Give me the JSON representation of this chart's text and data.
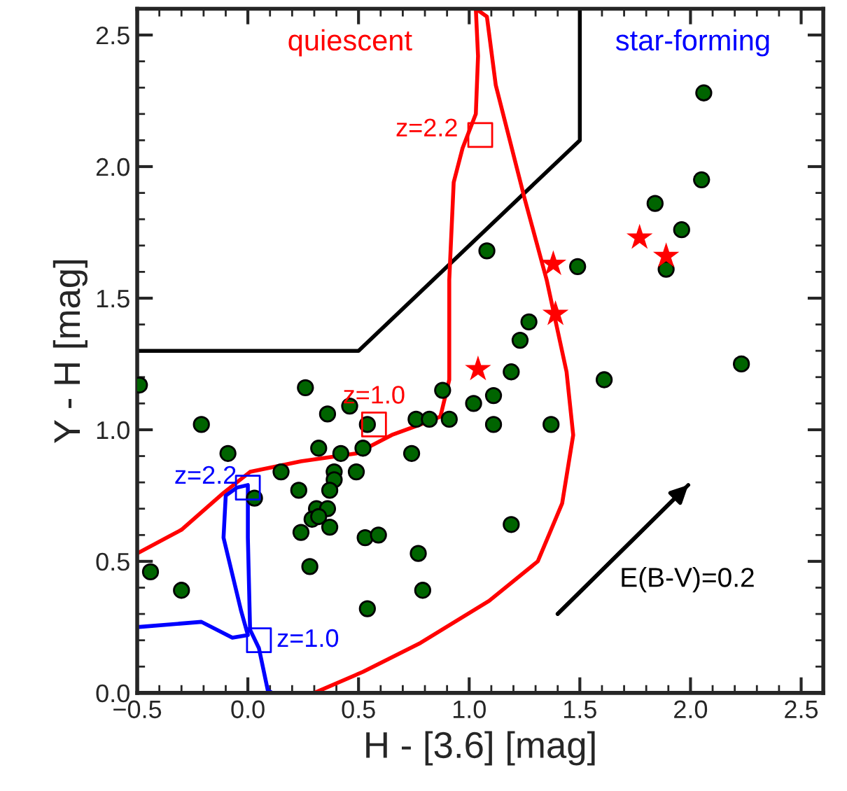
{
  "chart_data": {
    "type": "scatter",
    "xlabel": "H - [3.6] [mag]",
    "ylabel": "Y - H [mag]",
    "xlim": [
      -0.5,
      2.6
    ],
    "ylim": [
      0,
      2.6
    ],
    "xticks": [
      {
        "value": -0.5,
        "label": "−0.5"
      },
      {
        "value": 0,
        "label": "0.0"
      },
      {
        "value": 0.5,
        "label": "0.5"
      },
      {
        "value": 1,
        "label": "1.0"
      },
      {
        "value": 1.5,
        "label": "1.5"
      },
      {
        "value": 2,
        "label": "2.0"
      },
      {
        "value": 2.5,
        "label": "2.5"
      }
    ],
    "yticks": [
      {
        "value": 0,
        "label": "0.0"
      },
      {
        "value": 0.5,
        "label": "0.5"
      },
      {
        "value": 1,
        "label": "1.0"
      },
      {
        "value": 1.5,
        "label": "1.5"
      },
      {
        "value": 2,
        "label": "2.0"
      },
      {
        "value": 2.5,
        "label": "2.5"
      }
    ],
    "grid": false,
    "legend": false,
    "series": [
      {
        "type": "line",
        "color": "#000000",
        "marker": "none",
        "x": [
          -0.5,
          0.5,
          1.5,
          1.5
        ],
        "values": [
          1.3,
          1.3,
          2.1,
          2.6
        ]
      },
      {
        "type": "line",
        "color": "#ff0000",
        "marker": "none",
        "x": [
          -0.5,
          -0.3,
          -0.11,
          0.01,
          0.24,
          0.49,
          0.65,
          0.78,
          0.87,
          0.91,
          0.91,
          0.93,
          0.97,
          1.03,
          1.04,
          1.03,
          1.08,
          1.12,
          1.25,
          1.35,
          1.44,
          1.47,
          1.42,
          1.31,
          1.09,
          0.78,
          0.52,
          0.3
        ],
        "values": [
          0.53,
          0.62,
          0.76,
          0.84,
          0.88,
          0.91,
          0.98,
          1.02,
          1.05,
          1.19,
          1.57,
          1.94,
          2.07,
          2.2,
          2.42,
          2.6,
          2.57,
          2.31,
          1.88,
          1.57,
          1.22,
          0.98,
          0.72,
          0.5,
          0.35,
          0.19,
          0.08,
          0.0
        ]
      },
      {
        "type": "line",
        "color": "#0000ff",
        "marker": "none",
        "x": [
          -0.5,
          -0.21,
          -0.07,
          0.0,
          -0.03,
          -0.11,
          -0.1,
          -0.05,
          0.0,
          0.0,
          0.01,
          0.05,
          0.09,
          0.11
        ],
        "values": [
          0.25,
          0.27,
          0.21,
          0.22,
          0.31,
          0.59,
          0.75,
          0.78,
          0.79,
          0.59,
          0.24,
          0.17,
          0.01,
          0.0
        ]
      },
      {
        "type": "line",
        "color": "#000000",
        "marker": "none",
        "x": [
          1.4,
          1.99
        ],
        "values": [
          0.3,
          0.79
        ]
      },
      {
        "type": "scatter",
        "color": "#006400",
        "marker": "circle",
        "x": [
          -0.49,
          -0.44,
          -0.3,
          -0.21,
          -0.09,
          0.03,
          0.15,
          0.26,
          0.23,
          0.24,
          0.28,
          0.32,
          0.36,
          0.42,
          0.46,
          0.39,
          0.39,
          0.37,
          0.31,
          0.36,
          0.29,
          0.32,
          0.37,
          0.49,
          0.52,
          0.53,
          0.59,
          0.54,
          0.54,
          0.74,
          0.77,
          0.79,
          0.76,
          0.82,
          0.88,
          0.91,
          1.08,
          1.49,
          1.27,
          1.23,
          1.19,
          1.61,
          1.02,
          1.11,
          1.11,
          1.37,
          1.19,
          2.06,
          2.05,
          1.84,
          1.96,
          1.89,
          2.23
        ],
        "values": [
          1.17,
          0.46,
          0.39,
          1.02,
          0.91,
          0.74,
          0.84,
          1.16,
          0.77,
          0.61,
          0.48,
          0.93,
          1.06,
          0.91,
          1.09,
          0.84,
          0.81,
          0.77,
          0.7,
          0.7,
          0.66,
          0.67,
          0.63,
          0.84,
          0.93,
          0.59,
          0.6,
          1.02,
          0.32,
          0.91,
          0.53,
          0.39,
          1.04,
          1.04,
          1.15,
          1.04,
          1.68,
          1.62,
          1.41,
          1.34,
          1.22,
          1.19,
          1.1,
          1.13,
          1.02,
          1.02,
          0.64,
          2.28,
          1.95,
          1.86,
          1.76,
          1.61,
          1.25
        ]
      },
      {
        "type": "scatter",
        "color": "#ff0000",
        "marker": "star",
        "x": [
          1.38,
          1.39,
          1.04,
          1.77,
          1.89
        ],
        "values": [
          1.63,
          1.44,
          1.23,
          1.73,
          1.66
        ]
      },
      {
        "type": "scatter",
        "color": "#ff0000",
        "marker": "square",
        "x": [
          1.05,
          0.57
        ],
        "values": [
          2.12,
          1.02
        ]
      },
      {
        "type": "scatter",
        "color": "#0000ff",
        "marker": "square",
        "x": [
          0.0,
          0.05
        ],
        "values": [
          0.78,
          0.2
        ]
      }
    ],
    "annotations": [
      {
        "text": "z=2.2",
        "x": 1.05,
        "y": 2.12
      },
      {
        "text": "z=1.0",
        "x": 0.57,
        "y": 1.02
      },
      {
        "text": "z=2.2",
        "x": 0.0,
        "y": 0.78
      },
      {
        "text": "z=1.0",
        "x": 0.05,
        "y": 0.2
      },
      {
        "text": "E(B-V)=0.2",
        "x": 1.4,
        "y": 0.3
      },
      "quiescent",
      "star-forming"
    ]
  }
}
